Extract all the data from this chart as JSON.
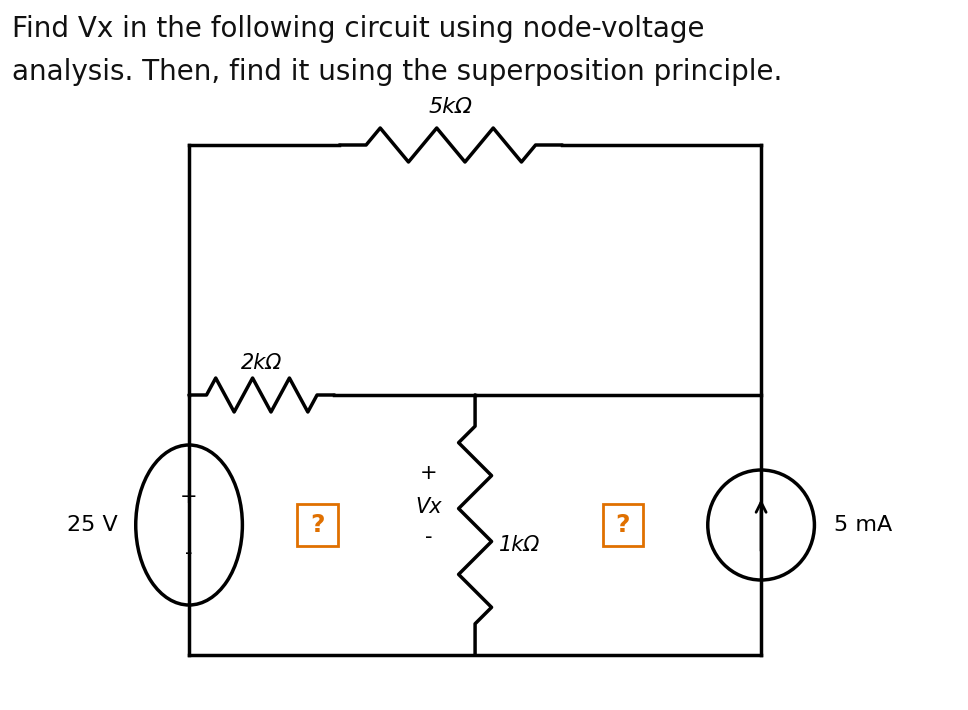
{
  "title_line1": "Find Vx in the following circuit using node-voltage",
  "title_line2": "analysis. Then, find it using the superposition principle.",
  "title_fontsize": 20,
  "bg_color": "#ffffff",
  "line_color": "#000000",
  "label_5k": "5kΩ",
  "label_2k": "2kΩ",
  "label_1k": "1kΩ",
  "label_25v": "25 V",
  "label_5ma": "5 mA",
  "question_color": "#e07000",
  "question_border": "#e07000"
}
